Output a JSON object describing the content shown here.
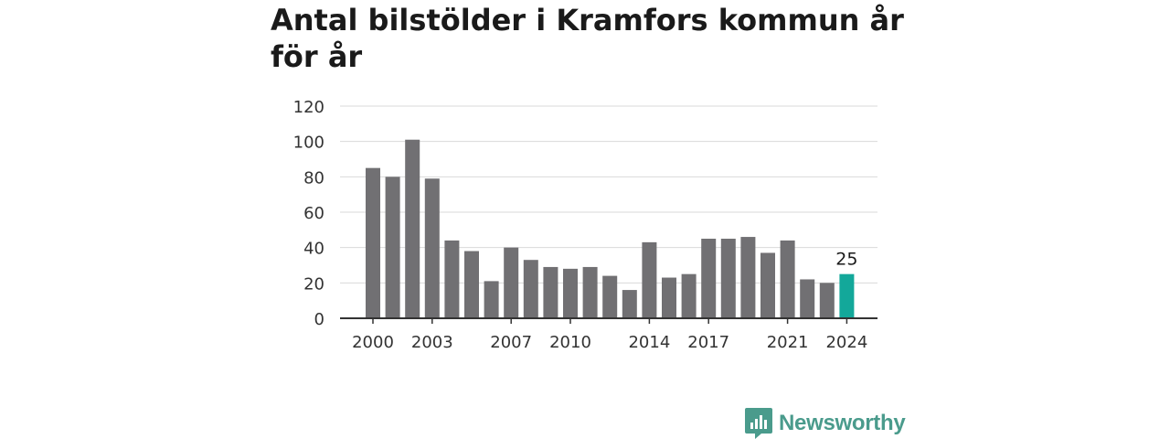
{
  "chart_data": {
    "type": "bar",
    "title": "Antal bilstölder i Kramfors kommun år för år",
    "x": [
      2000,
      2001,
      2002,
      2003,
      2004,
      2005,
      2006,
      2007,
      2008,
      2009,
      2010,
      2011,
      2012,
      2013,
      2014,
      2015,
      2016,
      2017,
      2018,
      2019,
      2020,
      2021,
      2022,
      2023,
      2024
    ],
    "values": [
      85,
      80,
      101,
      79,
      44,
      38,
      21,
      40,
      33,
      29,
      28,
      29,
      24,
      16,
      43,
      23,
      25,
      45,
      45,
      46,
      37,
      44,
      22,
      20,
      25
    ],
    "x_tick_labels": [
      "2000",
      "2003",
      "2007",
      "2010",
      "2014",
      "2017",
      "2021",
      "2024"
    ],
    "y_ticks": [
      0,
      20,
      40,
      60,
      80,
      100,
      120
    ],
    "ylim": [
      0,
      120
    ],
    "xlabel": "",
    "ylabel": "",
    "grid": true,
    "highlight": {
      "x": 2024,
      "label": "25"
    },
    "colors": {
      "bar": "#717073",
      "highlight": "#13a89a",
      "grid": "#d9d9d9",
      "axis": "#333333"
    }
  },
  "logo": {
    "text": "Newsworthy",
    "color": "#4a9b8c"
  }
}
